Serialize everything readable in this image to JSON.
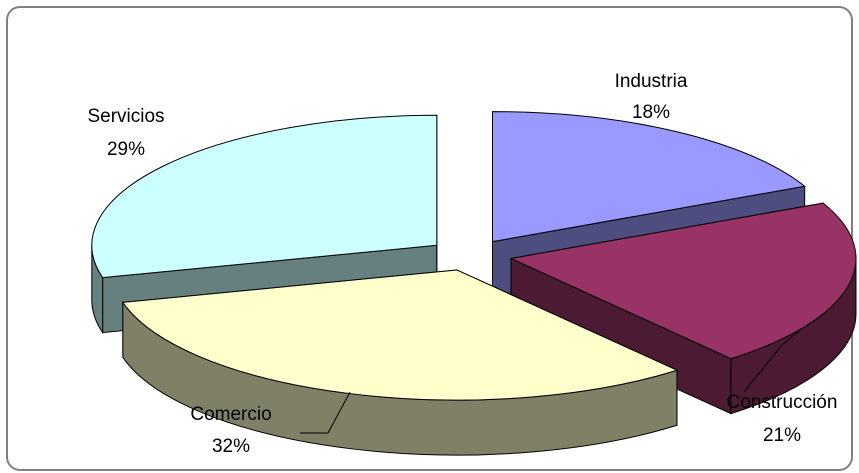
{
  "chart_data": {
    "type": "pie",
    "subtype": "3d-exploded",
    "title": "",
    "legend": "none",
    "labels": [
      "Industria",
      "Construcción",
      "Comercio",
      "Servicios"
    ],
    "values": [
      18,
      21,
      32,
      29
    ],
    "value_labels": [
      "18%",
      "21%",
      "32%",
      "29%"
    ],
    "colors": {
      "top": [
        "#9999FF",
        "#993366",
        "#FFFFCC",
        "#CCFFFF"
      ],
      "side": [
        "#4D4D80",
        "#4D1A33",
        "#808066",
        "#668080"
      ]
    },
    "border_color": "#000000"
  }
}
